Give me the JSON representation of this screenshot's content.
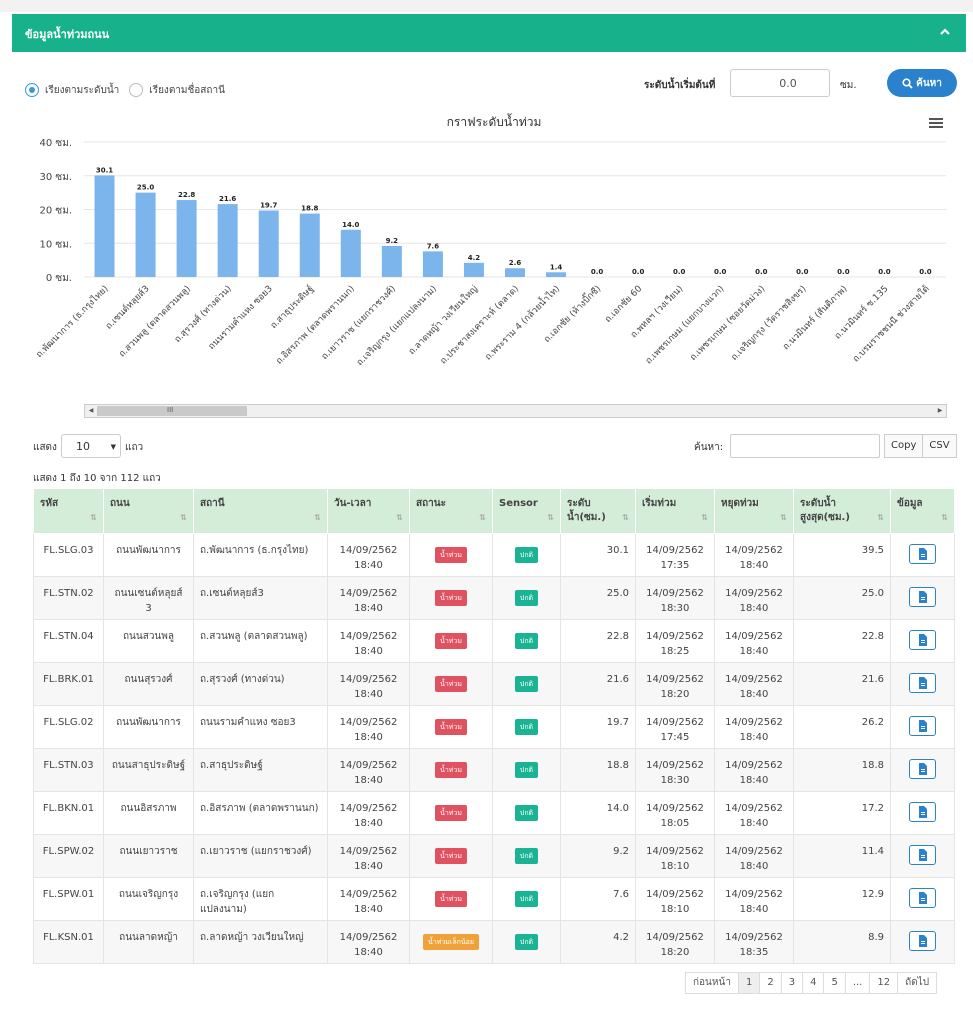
{
  "panel": {
    "title": "ข้อมูลน้ำท่วมถนน"
  },
  "sort_options": [
    "เรียงตามระดับน้ำ",
    "เรียงตามชื่อสถานี"
  ],
  "filter_bar": {
    "level_label": "ระดับน้ำเริ่มต้นที่",
    "level_value": "0.0",
    "unit": "ซม.",
    "search_label": "ค้นหา"
  },
  "chart_data": {
    "type": "bar",
    "title": "กราฟระดับน้ำท่วม",
    "ylim": [
      0,
      40
    ],
    "yticks": [
      "0 ซม.",
      "10 ซม.",
      "20 ซม.",
      "30 ซม.",
      "40 ซม."
    ],
    "categories": [
      "ถ.พัฒนาการ (ธ.กรุงไทย)",
      "ถ.เซนต์หลุยส์3",
      "ถ.สวนพลู (ตลาดสวนพลู)",
      "ถ.สุรวงศ์ (ทางด่วน)",
      "ถนนรามคำแหง ซอย3",
      "ถ.สาธุประดิษฐ์",
      "ถ.อิสรภาพ (ตลาดพรานนก)",
      "ถ.เยาวราช (แยกราชวงศ์)",
      "ถ.เจริญกรุง (แยกแปลงนาม)",
      "ถ.ลาดหญ้า วงเวียนใหญ่",
      "ถ.ประชาสงเคราะห์ (ตลาด)",
      "ถ.พระราม 4 (กล้วยน้ำไท)",
      "ถ.เอกชัย (ห้างบิ๊กซี)",
      "ถ.เอกชัย 60",
      "ถ.พหลฯ (วงเวียน)",
      "ถ.เพชรเกษม (แยกบางแวก)",
      "ถ.เพชรเกษม (ซอยวัดม่วง)",
      "ถ.เจริญกรุง (วัดราชสิงขร)",
      "ถ.นวมินทร์ (สันติภาพ)",
      "ถ.นวมินทร์ ซ.135",
      "ถ.บรมราชชนนี ช่วงสายใต้"
    ],
    "values": [
      30.1,
      25.0,
      22.8,
      21.6,
      19.7,
      18.8,
      14.0,
      9.2,
      7.6,
      4.2,
      2.6,
      1.4,
      0.0,
      0.0,
      0.0,
      0.0,
      0.0,
      0.0,
      0.0,
      0.0,
      0.0
    ],
    "value_labels": [
      "30.1",
      "25.0",
      "22.8",
      "21.6",
      "19.7",
      "18.8",
      "14.0",
      "9.2",
      "7.6",
      "4.2",
      "2.6",
      "1.4",
      "0.0",
      "0.0",
      "0.0",
      "0.0",
      "0.0",
      "0.0",
      "0.0",
      "0.0",
      "0.0"
    ],
    "bar_color": "#7cb5ec",
    "grid": true
  },
  "table_controls": {
    "show": "แสดง",
    "page_size": "10",
    "rows": "แถว",
    "search": "ค้นหา:",
    "copy": "Copy",
    "csv": "CSV",
    "info": "แสดง 1 ถึง 10 จาก 112 แถว"
  },
  "columns": [
    "รหัส",
    "ถนน",
    "สถานี",
    "วัน-เวลา",
    "สถานะ",
    "Sensor",
    "ระดับ น้ำ(ซม.)",
    "เริ่มท่วม",
    "หยุดท่วม",
    "ระดับน้ำ สูงสุด(ซม.)",
    "ข้อมูล"
  ],
  "rows": [
    {
      "code": "FL.SLG.03",
      "road": "ถนนพัฒนาการ",
      "station": "ถ.พัฒนาการ (ธ.กรุงไทย)",
      "date": "14/09/2562",
      "time": "18:40",
      "status": "น้ำท่วม",
      "status_type": "red",
      "sensor": "ปกติ",
      "level": "30.1",
      "start_date": "14/09/2562",
      "start_time": "17:35",
      "stop_date": "14/09/2562",
      "stop_time": "18:40",
      "max": "39.5"
    },
    {
      "code": "FL.STN.02",
      "road": "ถนนเซนต์หลุยส์ 3",
      "station": "ถ.เซนต์หลุยส์3",
      "date": "14/09/2562",
      "time": "18:40",
      "status": "น้ำท่วม",
      "status_type": "red",
      "sensor": "ปกติ",
      "level": "25.0",
      "start_date": "14/09/2562",
      "start_time": "18:30",
      "stop_date": "14/09/2562",
      "stop_time": "18:40",
      "max": "25.0"
    },
    {
      "code": "FL.STN.04",
      "road": "ถนนสวนพลู",
      "station": "ถ.สวนพลู (ตลาดสวนพลู)",
      "date": "14/09/2562",
      "time": "18:40",
      "status": "น้ำท่วม",
      "status_type": "red",
      "sensor": "ปกติ",
      "level": "22.8",
      "start_date": "14/09/2562",
      "start_time": "18:25",
      "stop_date": "14/09/2562",
      "stop_time": "18:40",
      "max": "22.8"
    },
    {
      "code": "FL.BRK.01",
      "road": "ถนนสุรวงศ์",
      "station": "ถ.สุรวงศ์ (ทางด่วน)",
      "date": "14/09/2562",
      "time": "18:40",
      "status": "น้ำท่วม",
      "status_type": "red",
      "sensor": "ปกติ",
      "level": "21.6",
      "start_date": "14/09/2562",
      "start_time": "18:20",
      "stop_date": "14/09/2562",
      "stop_time": "18:40",
      "max": "21.6"
    },
    {
      "code": "FL.SLG.02",
      "road": "ถนนพัฒนาการ",
      "station": "ถนนรามคำแหง ซอย3",
      "date": "14/09/2562",
      "time": "18:40",
      "status": "น้ำท่วม",
      "status_type": "red",
      "sensor": "ปกติ",
      "level": "19.7",
      "start_date": "14/09/2562",
      "start_time": "17:45",
      "stop_date": "14/09/2562",
      "stop_time": "18:40",
      "max": "26.2"
    },
    {
      "code": "FL.STN.03",
      "road": "ถนนสาธุประดิษฐ์",
      "station": "ถ.สาธุประดิษฐ์",
      "date": "14/09/2562",
      "time": "18:40",
      "status": "น้ำท่วม",
      "status_type": "red",
      "sensor": "ปกติ",
      "level": "18.8",
      "start_date": "14/09/2562",
      "start_time": "18:30",
      "stop_date": "14/09/2562",
      "stop_time": "18:40",
      "max": "18.8"
    },
    {
      "code": "FL.BKN.01",
      "road": "ถนนอิสรภาพ",
      "station": "ถ.อิสรภาพ (ตลาดพรานนก)",
      "date": "14/09/2562",
      "time": "18:40",
      "status": "น้ำท่วม",
      "status_type": "red",
      "sensor": "ปกติ",
      "level": "14.0",
      "start_date": "14/09/2562",
      "start_time": "18:05",
      "stop_date": "14/09/2562",
      "stop_time": "18:40",
      "max": "17.2"
    },
    {
      "code": "FL.SPW.02",
      "road": "ถนนเยาวราช",
      "station": "ถ.เยาวราช (แยกราชวงศ์)",
      "date": "14/09/2562",
      "time": "18:40",
      "status": "น้ำท่วม",
      "status_type": "red",
      "sensor": "ปกติ",
      "level": "9.2",
      "start_date": "14/09/2562",
      "start_time": "18:10",
      "stop_date": "14/09/2562",
      "stop_time": "18:40",
      "max": "11.4"
    },
    {
      "code": "FL.SPW.01",
      "road": "ถนนเจริญกรุง",
      "station": "ถ.เจริญกรุง (แยก แปลงนาม)",
      "date": "14/09/2562",
      "time": "18:40",
      "status": "น้ำท่วม",
      "status_type": "red",
      "sensor": "ปกติ",
      "level": "7.6",
      "start_date": "14/09/2562",
      "start_time": "18:10",
      "stop_date": "14/09/2562",
      "stop_time": "18:40",
      "max": "12.9"
    },
    {
      "code": "FL.KSN.01",
      "road": "ถนนลาดหญ้า",
      "station": "ถ.ลาดหญ้า วงเวียนใหญ่",
      "date": "14/09/2562",
      "time": "18:40",
      "status": "น้ำท่วมเล็กน้อย",
      "status_type": "orange",
      "sensor": "ปกติ",
      "level": "4.2",
      "start_date": "14/09/2562",
      "start_time": "18:20",
      "stop_date": "14/09/2562",
      "stop_time": "18:35",
      "max": "8.9"
    }
  ],
  "pagination": [
    "ก่อนหน้า",
    "1",
    "2",
    "3",
    "4",
    "5",
    "...",
    "12",
    "ถัดไป"
  ],
  "colors": {
    "header": "#17b28b",
    "accent": "#2a82cc",
    "table_head": "#d4edd9"
  }
}
